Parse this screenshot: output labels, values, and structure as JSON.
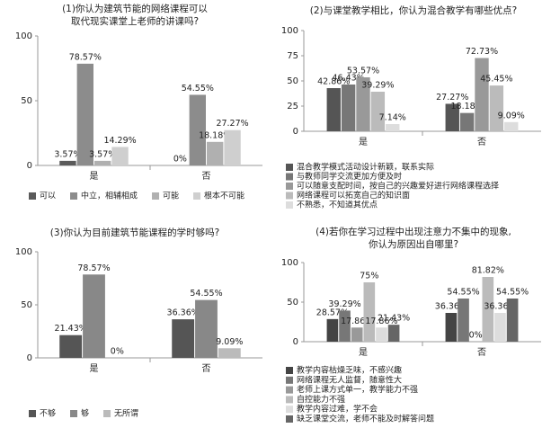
{
  "chart_data": [
    {
      "type": "bar",
      "title": [
        "(1)你认为建筑节能的网络课程可以",
        "取代现实课堂上老师的讲课吗?"
      ],
      "categories": [
        "是",
        "否"
      ],
      "series": [
        {
          "name": "可以",
          "color": "#5a5a5a",
          "values": [
            3.57,
            0
          ],
          "value_labels": [
            "3.57%",
            "0%"
          ]
        },
        {
          "name": "中立，相辅相成",
          "color": "#8c8c8c",
          "values": [
            78.57,
            54.55
          ],
          "value_labels": [
            "78.57%",
            "54.55%"
          ]
        },
        {
          "name": "可能",
          "color": "#b0b0b0",
          "values": [
            3.57,
            18.18
          ],
          "value_labels": [
            "3.57%",
            "18.18%"
          ]
        },
        {
          "name": "根本不可能",
          "color": "#cfcfcf",
          "values": [
            14.29,
            27.27
          ],
          "value_labels": [
            "14.29%",
            "27.27%"
          ]
        }
      ],
      "ylim": [
        0,
        100
      ],
      "yticks": [
        0,
        50,
        100
      ],
      "legend": "bottom"
    },
    {
      "type": "bar",
      "title": [
        "(2)与课堂教学相比，你认为混合教学有哪些优点?"
      ],
      "categories": [
        "是",
        "否"
      ],
      "series": [
        {
          "name": "混合教学模式活动设计新颖，联系实际",
          "color": "#555555",
          "values": [
            42.86,
            27.27
          ],
          "value_labels": [
            "42.86%",
            "27.27%"
          ]
        },
        {
          "name": "与教师同学交流更加方便及时",
          "color": "#777777",
          "values": [
            46.43,
            18.18
          ],
          "value_labels": [
            "46.43%",
            "18.18%"
          ]
        },
        {
          "name": "可以随意支配时间，按自己的兴趣爱好进行网络课程选择",
          "color": "#999999",
          "values": [
            53.57,
            72.73
          ],
          "value_labels": [
            "53.57%",
            "72.73%"
          ]
        },
        {
          "name": "网络课程可以拓宽自己的知识面",
          "color": "#bbbbbb",
          "values": [
            39.29,
            45.45
          ],
          "value_labels": [
            "39.29%",
            "45.45%"
          ]
        },
        {
          "name": "不熟悉，不知道其优点",
          "color": "#dddddd",
          "values": [
            7.14,
            9.09
          ],
          "value_labels": [
            "7.14%",
            "9.09%"
          ]
        }
      ],
      "ylim": [
        0,
        100
      ],
      "yticks": [
        0,
        25,
        50,
        75,
        100
      ],
      "legend": "bottom"
    },
    {
      "type": "bar",
      "title": [
        "(3)你认为目前建筑节能课程的学时够吗?"
      ],
      "categories": [
        "是",
        "否"
      ],
      "series": [
        {
          "name": "不够",
          "color": "#555555",
          "values": [
            21.43,
            36.36
          ],
          "value_labels": [
            "21.43%",
            "36.36%"
          ]
        },
        {
          "name": "够",
          "color": "#888888",
          "values": [
            78.57,
            54.55
          ],
          "value_labels": [
            "78.57%",
            "54.55%"
          ]
        },
        {
          "name": "无所谓",
          "color": "#bbbbbb",
          "values": [
            0,
            9.09
          ],
          "value_labels": [
            "0%",
            "9.09%"
          ]
        }
      ],
      "ylim": [
        0,
        100
      ],
      "yticks": [
        0,
        50,
        100
      ],
      "legend": "bottom"
    },
    {
      "type": "bar",
      "title": [
        "(4)若你在学习过程中出现注意力不集中的现象,",
        "你认为原因出自哪里?"
      ],
      "categories": [
        "是",
        "否"
      ],
      "series": [
        {
          "name": "教学内容枯燥乏味，不感兴趣",
          "color": "#444444",
          "values": [
            28.57,
            36.36
          ],
          "value_labels": [
            "28.57%",
            "36.36%"
          ]
        },
        {
          "name": "网络课程无人监督，随意性大",
          "color": "#777777",
          "values": [
            39.29,
            54.55
          ],
          "value_labels": [
            "39.29%",
            "54.55%"
          ]
        },
        {
          "name": "老师上课方式单一，教学能力不强",
          "color": "#999999",
          "values": [
            17.86,
            0
          ],
          "value_labels": [
            "17.86%",
            "0%"
          ]
        },
        {
          "name": "自控能力不强",
          "color": "#bbbbbb",
          "values": [
            75,
            81.82
          ],
          "value_labels": [
            "75%",
            "81.82%"
          ]
        },
        {
          "name": "教学内容过难，学不会",
          "color": "#dddddd",
          "values": [
            17.86,
            36.36
          ],
          "value_labels": [
            "17.86%",
            "36.36%"
          ]
        },
        {
          "name": "缺乏课堂交流，老师不能及时解答问题",
          "color": "#666666",
          "values": [
            21.43,
            54.55
          ],
          "value_labels": [
            "21.43%",
            "54.55%"
          ]
        }
      ],
      "ylim": [
        0,
        100
      ],
      "yticks": [
        0,
        50,
        100
      ],
      "legend": "bottom"
    }
  ]
}
